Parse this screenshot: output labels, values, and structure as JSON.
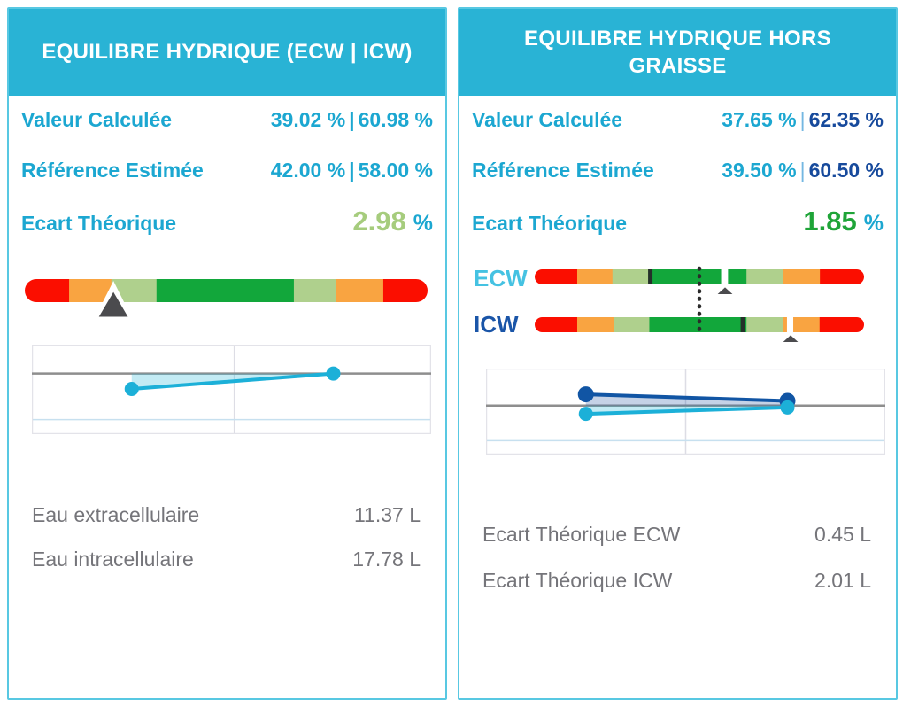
{
  "panels": {
    "left": {
      "title": "EQUILIBRE HYDRIQUE (ECW | ICW)",
      "metrics": [
        {
          "label": "Valeur Calculée",
          "value_primary": "39.02 %",
          "separator": "|",
          "value_secondary": "60.98 %"
        },
        {
          "label": "Référence Estimée",
          "value_primary": "42.00 %",
          "separator": "|",
          "value_secondary": "58.00 %"
        }
      ],
      "deviation": {
        "label": "Ecart Théorique",
        "value": "2.98",
        "unit": "%"
      },
      "stats": [
        {
          "label": "Eau extracellulaire",
          "value": "11.37 L"
        },
        {
          "label": "Eau intracellulaire",
          "value": "17.78 L"
        }
      ]
    },
    "right": {
      "title_line1": "EQUILIBRE HYDRIQUE HORS",
      "title_line2": "GRAISSE",
      "metrics": [
        {
          "label": "Valeur Calculée",
          "value_primary": "37.65 %",
          "separator": "|",
          "value_secondary": "62.35 %"
        },
        {
          "label": "Référence Estimée",
          "value_primary": "39.50 %",
          "separator": "|",
          "value_secondary": "60.50 %"
        }
      ],
      "deviation": {
        "label": "Ecart Théorique",
        "value": "1.85",
        "unit": "%"
      },
      "gauge_labels": [
        "ECW",
        "ICW"
      ],
      "stats": [
        {
          "label": "Ecart Théorique ECW",
          "value": "0.45 L"
        },
        {
          "label": "Ecart Théorique ICW",
          "value": "2.01 L"
        }
      ]
    }
  },
  "colors": {
    "header_bg": "#29b3d5",
    "panel_border": "#58c8e2",
    "cyan_text": "#1ca7d1",
    "navy_text": "#174a9c",
    "ecw_label": "#45c2e2",
    "icw_label": "#1a55a8",
    "olive_green_value": "#a6cc7d",
    "green_value": "#1fa438",
    "gray_text": "#75757a",
    "red": "#fb0e00",
    "orange": "#f9a441",
    "light_green": "#afd08d",
    "dark_green": "#12a73b",
    "white": "#ffffff",
    "marker": "#4b4b4e",
    "tick": "#24312a",
    "dotted": "#2b2b2b",
    "baseline": "#8e8e8e",
    "grid": "#dddde5",
    "grid_blue": "#c7e0ef",
    "chart_border": "#e3e3e9",
    "cyan_line": "#1cb0d8",
    "blue_line": "#1155a4",
    "fill_cyan": "rgba(41,182,216,0.28)",
    "fill_blue": "rgba(23,74,156,0.25)"
  },
  "chart_data": [
    {
      "id": "hydric-balance-gauge",
      "type": "gauge",
      "segments": [
        [
          "red",
          0.11
        ],
        [
          "orange",
          0.105
        ],
        [
          "light_green",
          0.112
        ],
        [
          "dark_green",
          0.341
        ],
        [
          "light_green",
          0.105
        ],
        [
          "orange",
          0.117
        ],
        [
          "red",
          0.11
        ]
      ],
      "ticks": [],
      "marker_pos": 0.22,
      "marker_style": "large"
    },
    {
      "id": "ecw-gauge",
      "type": "gauge",
      "segments": [
        [
          "red",
          0.129
        ],
        [
          "orange",
          0.107
        ],
        [
          "light_green",
          0.115
        ],
        [
          "dark_green",
          0.215
        ],
        [
          "white",
          0.021
        ],
        [
          "dark_green",
          0.056
        ],
        [
          "light_green",
          0.11
        ],
        [
          "orange",
          0.113
        ],
        [
          "red",
          0.134
        ]
      ],
      "ticks": [
        0.351
      ],
      "marker_pos": 0.578,
      "marker_style": "small"
    },
    {
      "id": "icw-gauge",
      "type": "gauge",
      "segments": [
        [
          "red",
          0.129
        ],
        [
          "orange",
          0.112
        ],
        [
          "light_green",
          0.107
        ],
        [
          "dark_green",
          0.295
        ],
        [
          "light_green",
          0.11
        ],
        [
          "orange",
          0.013
        ],
        [
          "white",
          0.019
        ],
        [
          "orange",
          0.08
        ],
        [
          "red",
          0.135
        ]
      ],
      "ticks": [
        0.632
      ],
      "marker_pos": 0.777,
      "marker_style": "small"
    },
    {
      "id": "left-trend",
      "type": "line",
      "baseline": 0.323,
      "v_gridline": 0.507,
      "h_gridline": 0.838,
      "series": [
        {
          "name": "ECW | ICW",
          "color_key": "cyan_line",
          "fill_key": "fill_cyan",
          "dot_r": 8,
          "points": [
            [
              0.25,
              0.495
            ],
            [
              0.755,
              0.323
            ]
          ]
        }
      ]
    },
    {
      "id": "right-trend",
      "type": "line",
      "baseline": 0.43,
      "v_gridline": 0.5,
      "h_gridline": 0.839,
      "series": [
        {
          "name": "ICW",
          "color_key": "blue_line",
          "fill_key": "fill_blue",
          "dot_r": 9,
          "points": [
            [
              0.25,
              0.3
            ],
            [
              0.755,
              0.376
            ]
          ]
        },
        {
          "name": "ECW",
          "color_key": "cyan_line",
          "fill_key": "fill_cyan",
          "dot_r": 8,
          "points": [
            [
              0.25,
              0.527
            ],
            [
              0.755,
              0.452
            ]
          ]
        }
      ]
    }
  ]
}
